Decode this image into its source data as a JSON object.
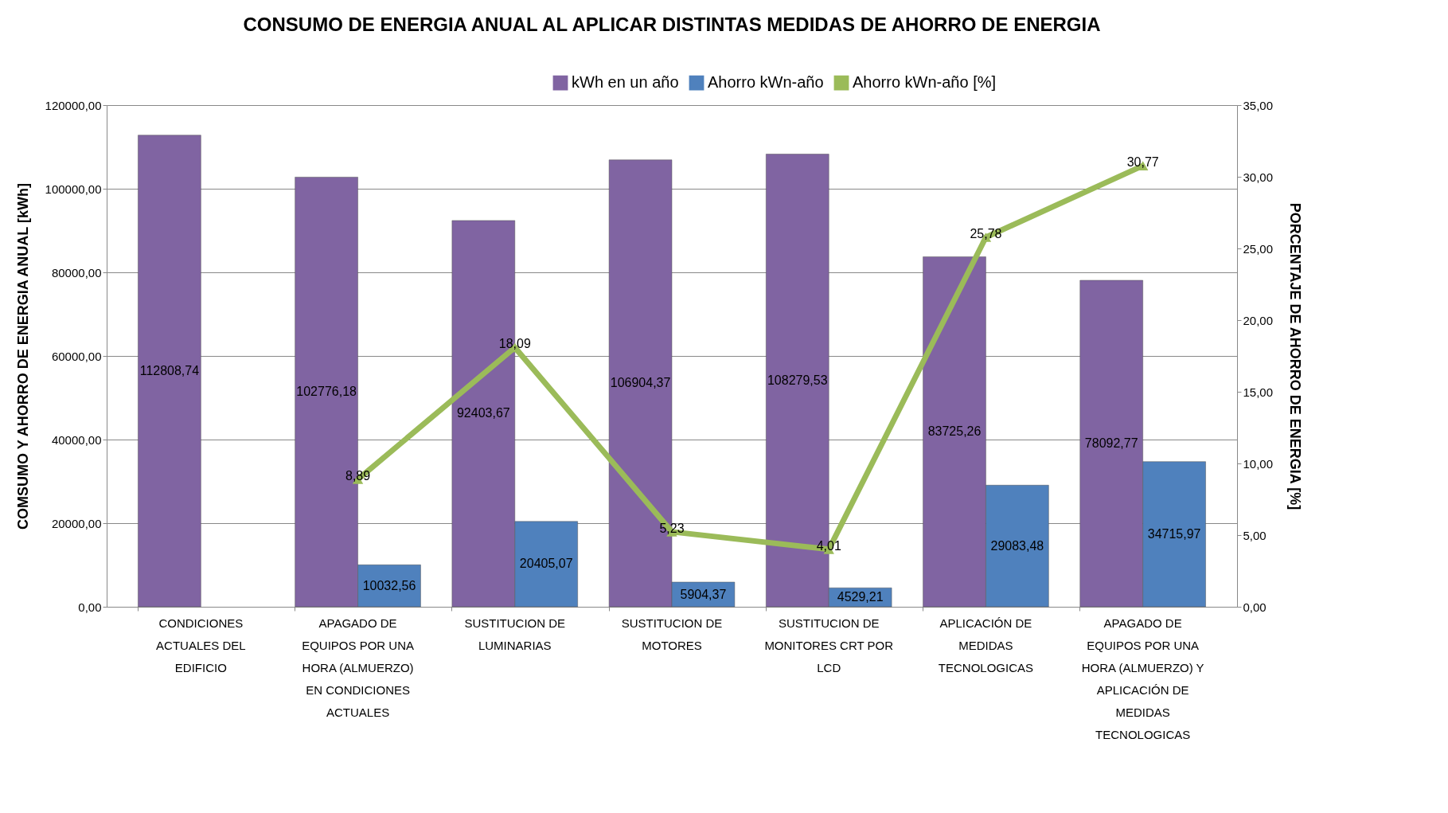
{
  "chart_data": {
    "type": "bar",
    "title": "CONSUMO DE ENERGIA ANUAL AL APLICAR DISTINTAS MEDIDAS DE AHORRO DE ENERGIA",
    "ylabel": "COMSUMO Y AHORRO  DE ENERGIA ANUAL [kWh]",
    "y2label": "PORCENTAJE DE AHORRO DE ENERGIA [%]",
    "categories": [
      "CONDICIONES ACTUALES DEL EDIFICIO",
      "APAGADO DE EQUIPOS POR UNA HORA (ALMUERZO) EN CONDICIONES ACTUALES",
      "SUSTITUCION DE LUMINARIAS",
      "SUSTITUCION DE MOTORES",
      "SUSTITUCION DE MONITORES CRT POR LCD",
      "APLICACIÓN DE MEDIDAS TECNOLOGICAS",
      "APAGADO DE EQUIPOS POR UNA HORA (ALMUERZO) Y APLICACIÓN DE MEDIDAS TECNOLOGICAS"
    ],
    "series": [
      {
        "name": "kWh en un año",
        "color": "#8064a2",
        "values": [
          112808.74,
          102776.18,
          92403.67,
          106904.37,
          108279.53,
          83725.26,
          78092.77
        ],
        "value_labels": [
          "112808,74",
          "102776,18",
          "92403,67",
          "106904,37",
          "108279,53",
          "83725,26",
          "78092,77"
        ]
      },
      {
        "name": "Ahorro kWn-año",
        "color": "#4f81bd",
        "values": [
          null,
          10032.56,
          20405.07,
          5904.37,
          4529.21,
          29083.48,
          34715.97
        ],
        "value_labels": [
          null,
          "10032,56",
          "20405,07",
          "5904,37",
          "4529,21",
          "29083,48",
          "34715,97"
        ]
      },
      {
        "name": "Ahorro kWn-año [%]",
        "type": "line",
        "axis": "y2",
        "color": "#9bbb59",
        "marker": "triangle",
        "values": [
          null,
          8.89,
          18.09,
          5.23,
          4.01,
          25.78,
          30.77
        ],
        "value_labels": [
          null,
          "8,89",
          "18,09",
          "5,23",
          "4,01",
          "25,78",
          "30,77"
        ]
      }
    ],
    "ylim": [
      0,
      120000
    ],
    "yticks": [
      {
        "value": 0,
        "label": "0,00"
      },
      {
        "value": 20000,
        "label": "20000,00"
      },
      {
        "value": 40000,
        "label": "40000,00"
      },
      {
        "value": 60000,
        "label": "60000,00"
      },
      {
        "value": 80000,
        "label": "80000,00"
      },
      {
        "value": 100000,
        "label": "100000,00"
      },
      {
        "value": 120000,
        "label": "120000,00"
      }
    ],
    "y2lim": [
      0,
      35
    ],
    "y2ticks": [
      {
        "value": 0,
        "label": "0,00"
      },
      {
        "value": 5,
        "label": "5,00"
      },
      {
        "value": 10,
        "label": "10,00"
      },
      {
        "value": 15,
        "label": "15,00"
      },
      {
        "value": 20,
        "label": "20,00"
      },
      {
        "value": 25,
        "label": "25,00"
      },
      {
        "value": 30,
        "label": "30,00"
      },
      {
        "value": 35,
        "label": "35,00"
      }
    ],
    "grid": "y",
    "legend": "top"
  }
}
